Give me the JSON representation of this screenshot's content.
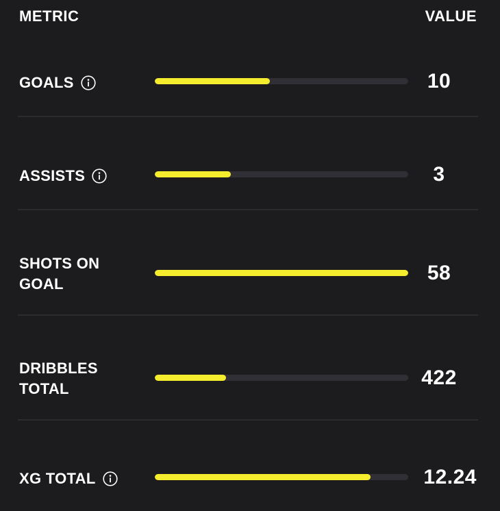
{
  "header": {
    "metric_label": "METRIC",
    "value_label": "VALUE"
  },
  "colors": {
    "background": "#1c1c1e",
    "bar_fill": "#f4ec2c",
    "bar_track": "#2f2f35",
    "divider": "#2c2c30",
    "text": "#ffffff"
  },
  "rows": [
    {
      "label": "GOALS",
      "has_info": true,
      "info_icon": "info-circle-icon",
      "value": "10",
      "fill_fraction": 0.455
    },
    {
      "label": "ASSISTS",
      "has_info": true,
      "info_icon": "info-circle-icon",
      "value": "3",
      "fill_fraction": 0.3
    },
    {
      "label": "SHOTS ON GOAL",
      "has_info": false,
      "value": "58",
      "fill_fraction": 1.0
    },
    {
      "label": "DRIBBLES TOTAL",
      "has_info": false,
      "value": "422",
      "fill_fraction": 0.28
    },
    {
      "label": "XG TOTAL",
      "has_info": true,
      "info_icon": "info-circle-icon",
      "value": "12.24",
      "fill_fraction": 0.85
    }
  ]
}
